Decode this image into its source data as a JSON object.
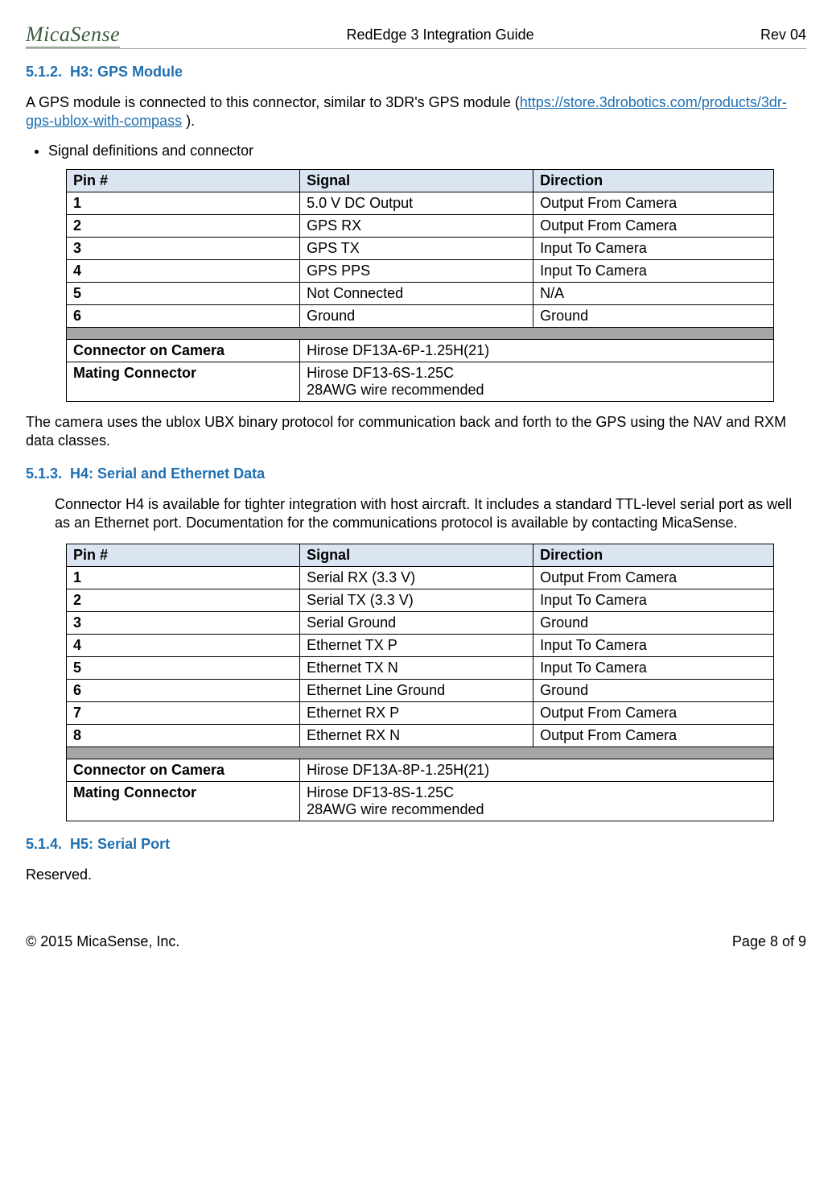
{
  "header": {
    "logo_text": "MicaSense",
    "center": "RedEdge 3 Integration Guide",
    "right": "Rev 04"
  },
  "section_512": {
    "num": "5.1.2.",
    "title": "H3: GPS Module",
    "intro_prefix": "A GPS module is connected to this connector, similar to 3DR's GPS module (",
    "link_text": "https://store.3drobotics.com/products/3dr-gps-ublox-with-compass",
    "intro_suffix": " ).",
    "bullet": "Signal definitions and connector",
    "table": {
      "headers": [
        "Pin #",
        "Signal",
        "Direction"
      ],
      "rows": [
        [
          "1",
          "5.0 V DC Output",
          "Output From Camera"
        ],
        [
          "2",
          "GPS RX",
          "Output From Camera"
        ],
        [
          "3",
          "GPS TX",
          "Input To Camera"
        ],
        [
          "4",
          "GPS PPS",
          "Input To Camera"
        ],
        [
          "5",
          "Not Connected",
          "N/A"
        ],
        [
          "6",
          "Ground",
          "Ground"
        ]
      ],
      "connector_camera_label": "Connector on Camera",
      "connector_camera_value": "Hirose DF13A-6P-1.25H(21)",
      "mating_label": "Mating Connector",
      "mating_value": "Hirose DF13-6S-1.25C\n28AWG wire recommended"
    },
    "post_text": "The camera uses the ublox UBX binary protocol for communication back and forth to the GPS using the NAV and RXM data classes."
  },
  "section_513": {
    "num": "5.1.3.",
    "title": "H4: Serial and Ethernet Data",
    "intro": "Connector H4 is available for tighter integration with host aircraft. It includes a standard TTL-level serial port as well as an Ethernet port. Documentation for the communications protocol is available by contacting MicaSense.",
    "table": {
      "headers": [
        "Pin #",
        "Signal",
        "Direction"
      ],
      "rows": [
        [
          "1",
          "Serial RX (3.3 V)",
          "Output From Camera"
        ],
        [
          "2",
          "Serial TX  (3.3 V)",
          "Input To Camera"
        ],
        [
          "3",
          "Serial Ground",
          "Ground"
        ],
        [
          "4",
          "Ethernet TX P",
          "Input To Camera"
        ],
        [
          "5",
          "Ethernet TX N",
          "Input To Camera"
        ],
        [
          "6",
          "Ethernet Line Ground",
          "Ground"
        ],
        [
          "7",
          "Ethernet RX P",
          "Output From Camera"
        ],
        [
          "8",
          "Ethernet RX N",
          "Output From Camera"
        ]
      ],
      "connector_camera_label": "Connector on Camera",
      "connector_camera_value": "Hirose DF13A-8P-1.25H(21)",
      "mating_label": "Mating Connector",
      "mating_value": "Hirose DF13-8S-1.25C\n28AWG wire recommended"
    }
  },
  "section_514": {
    "num": "5.1.4.",
    "title": "H5: Serial Port",
    "body": "Reserved."
  },
  "footer": {
    "left": "© 2015 MicaSense, Inc.",
    "right": "Page 8 of 9"
  },
  "colors": {
    "heading_blue": "#1f6fb2",
    "table_header_bg": "#dbe5f1",
    "separator_bg": "#a6a6a6",
    "logo_green": "#3b5b3b"
  }
}
